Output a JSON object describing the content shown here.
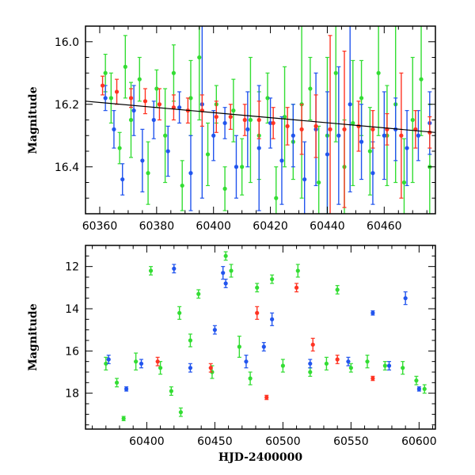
{
  "chart_data": [
    {
      "type": "scatter",
      "panel": "top",
      "xlabel": "",
      "ylabel": "Magnitude",
      "xlim": [
        60355,
        60478
      ],
      "ylim": [
        16.55,
        15.95
      ],
      "y_inverted": true,
      "xticks": [
        60360,
        60380,
        60400,
        60420,
        60440,
        60460
      ],
      "yticks": [
        16.0,
        16.2,
        16.4
      ],
      "trend": {
        "x": [
          60355,
          60478
        ],
        "y": [
          16.19,
          16.29
        ]
      },
      "series": [
        {
          "color": "#33dd33",
          "points": [
            {
              "x": 60362,
              "y": 16.1,
              "e": 0.06
            },
            {
              "x": 60364,
              "y": 16.18,
              "e": 0.08
            },
            {
              "x": 60367,
              "y": 16.34,
              "e": 0.05
            },
            {
              "x": 60369,
              "y": 16.08,
              "e": 0.1
            },
            {
              "x": 60371,
              "y": 16.25,
              "e": 0.12
            },
            {
              "x": 60374,
              "y": 16.12,
              "e": 0.07
            },
            {
              "x": 60377,
              "y": 16.42,
              "e": 0.1
            },
            {
              "x": 60380,
              "y": 16.15,
              "e": 0.06
            },
            {
              "x": 60383,
              "y": 16.3,
              "e": 0.15
            },
            {
              "x": 60386,
              "y": 16.1,
              "e": 0.09
            },
            {
              "x": 60389,
              "y": 16.46,
              "e": 0.08
            },
            {
              "x": 60392,
              "y": 16.18,
              "e": 0.12
            },
            {
              "x": 60395,
              "y": 16.05,
              "e": 0.2
            },
            {
              "x": 60398,
              "y": 16.36,
              "e": 0.1
            },
            {
              "x": 60401,
              "y": 16.2,
              "e": 0.06
            },
            {
              "x": 60404,
              "y": 16.47,
              "e": 0.07
            },
            {
              "x": 60407,
              "y": 16.22,
              "e": 0.1
            },
            {
              "x": 60410,
              "y": 16.4,
              "e": 0.09
            },
            {
              "x": 60413,
              "y": 16.25,
              "e": 0.2
            },
            {
              "x": 60416,
              "y": 16.3,
              "e": 0.14
            },
            {
              "x": 60419,
              "y": 16.18,
              "e": 0.08
            },
            {
              "x": 60422,
              "y": 16.5,
              "e": 0.1
            },
            {
              "x": 60425,
              "y": 16.24,
              "e": 0.16
            },
            {
              "x": 60428,
              "y": 16.32,
              "e": 0.12
            },
            {
              "x": 60431,
              "y": 16.2,
              "e": 0.3
            },
            {
              "x": 60434,
              "y": 16.15,
              "e": 0.1
            },
            {
              "x": 60437,
              "y": 16.45,
              "e": 0.18
            },
            {
              "x": 60440,
              "y": 16.3,
              "e": 0.25
            },
            {
              "x": 60443,
              "y": 16.1,
              "e": 0.22
            },
            {
              "x": 60446,
              "y": 16.4,
              "e": 0.15
            },
            {
              "x": 60449,
              "y": 16.26,
              "e": 0.2
            },
            {
              "x": 60452,
              "y": 16.18,
              "e": 0.12
            },
            {
              "x": 60455,
              "y": 16.35,
              "e": 0.14
            },
            {
              "x": 60458,
              "y": 16.1,
              "e": 0.2
            },
            {
              "x": 60461,
              "y": 16.3,
              "e": 0.16
            },
            {
              "x": 60464,
              "y": 16.2,
              "e": 0.25
            },
            {
              "x": 60467,
              "y": 16.45,
              "e": 0.14
            },
            {
              "x": 60470,
              "y": 16.25,
              "e": 0.2
            },
            {
              "x": 60473,
              "y": 16.12,
              "e": 0.18
            },
            {
              "x": 60476,
              "y": 16.4,
              "e": 0.2
            }
          ]
        },
        {
          "color": "#2255ee",
          "points": [
            {
              "x": 60362,
              "y": 16.18,
              "e": 0.04
            },
            {
              "x": 60365,
              "y": 16.28,
              "e": 0.06
            },
            {
              "x": 60368,
              "y": 16.44,
              "e": 0.05
            },
            {
              "x": 60372,
              "y": 16.22,
              "e": 0.08
            },
            {
              "x": 60375,
              "y": 16.38,
              "e": 0.1
            },
            {
              "x": 60379,
              "y": 16.25,
              "e": 0.06
            },
            {
              "x": 60384,
              "y": 16.35,
              "e": 0.08
            },
            {
              "x": 60388,
              "y": 16.21,
              "e": 0.05
            },
            {
              "x": 60392,
              "y": 16.42,
              "e": 0.12
            },
            {
              "x": 60396,
              "y": 16.2,
              "e": 0.3
            },
            {
              "x": 60400,
              "y": 16.3,
              "e": 0.08
            },
            {
              "x": 60404,
              "y": 16.26,
              "e": 0.05
            },
            {
              "x": 60408,
              "y": 16.4,
              "e": 0.1
            },
            {
              "x": 60412,
              "y": 16.28,
              "e": 0.12
            },
            {
              "x": 60416,
              "y": 16.34,
              "e": 0.2
            },
            {
              "x": 60420,
              "y": 16.26,
              "e": 0.08
            },
            {
              "x": 60424,
              "y": 16.38,
              "e": 0.14
            },
            {
              "x": 60428,
              "y": 16.3,
              "e": 0.1
            },
            {
              "x": 60432,
              "y": 16.44,
              "e": 0.12
            },
            {
              "x": 60436,
              "y": 16.28,
              "e": 0.18
            },
            {
              "x": 60440,
              "y": 16.36,
              "e": 0.2
            },
            {
              "x": 60444,
              "y": 16.3,
              "e": 0.22
            },
            {
              "x": 60448,
              "y": 16.2,
              "e": 0.28
            },
            {
              "x": 60452,
              "y": 16.32,
              "e": 0.12
            },
            {
              "x": 60456,
              "y": 16.42,
              "e": 0.1
            },
            {
              "x": 60460,
              "y": 16.3,
              "e": 0.14
            },
            {
              "x": 60464,
              "y": 16.28,
              "e": 0.1
            },
            {
              "x": 60468,
              "y": 16.34,
              "e": 0.12
            },
            {
              "x": 60472,
              "y": 16.3,
              "e": 0.08
            },
            {
              "x": 60476,
              "y": 16.26,
              "e": 0.1
            }
          ]
        },
        {
          "color": "#ff3322",
          "points": [
            {
              "x": 60361,
              "y": 16.14,
              "e": 0.03
            },
            {
              "x": 60366,
              "y": 16.16,
              "e": 0.04
            },
            {
              "x": 60371,
              "y": 16.18,
              "e": 0.03
            },
            {
              "x": 60376,
              "y": 16.19,
              "e": 0.04
            },
            {
              "x": 60381,
              "y": 16.2,
              "e": 0.05
            },
            {
              "x": 60386,
              "y": 16.21,
              "e": 0.04
            },
            {
              "x": 60391,
              "y": 16.22,
              "e": 0.04
            },
            {
              "x": 60396,
              "y": 16.22,
              "e": 0.05
            },
            {
              "x": 60401,
              "y": 16.24,
              "e": 0.05
            },
            {
              "x": 60406,
              "y": 16.24,
              "e": 0.04
            },
            {
              "x": 60411,
              "y": 16.25,
              "e": 0.05
            },
            {
              "x": 60416,
              "y": 16.25,
              "e": 0.06
            },
            {
              "x": 60421,
              "y": 16.26,
              "e": 0.05
            },
            {
              "x": 60426,
              "y": 16.27,
              "e": 0.06
            },
            {
              "x": 60431,
              "y": 16.28,
              "e": 0.08
            },
            {
              "x": 60436,
              "y": 16.27,
              "e": 0.1
            },
            {
              "x": 60441,
              "y": 16.28,
              "e": 0.3
            },
            {
              "x": 60446,
              "y": 16.28,
              "e": 0.25
            },
            {
              "x": 60451,
              "y": 16.27,
              "e": 0.08
            },
            {
              "x": 60456,
              "y": 16.28,
              "e": 0.06
            },
            {
              "x": 60461,
              "y": 16.28,
              "e": 0.05
            },
            {
              "x": 60466,
              "y": 16.3,
              "e": 0.2
            },
            {
              "x": 60471,
              "y": 16.28,
              "e": 0.06
            },
            {
              "x": 60476,
              "y": 16.29,
              "e": 0.05
            }
          ]
        }
      ]
    },
    {
      "type": "scatter",
      "panel": "bottom",
      "xlabel": "HJD-2400000",
      "ylabel": "Magnitude",
      "xlim": [
        60355,
        60612
      ],
      "ylim": [
        19.7,
        11.0
      ],
      "y_inverted": true,
      "xticks": [
        60400,
        60450,
        60500,
        60550,
        60600
      ],
      "yticks": [
        12,
        14,
        16,
        18
      ],
      "series": [
        {
          "color": "#33dd33",
          "points": [
            {
              "x": 60370,
              "y": 16.6,
              "e": 0.3
            },
            {
              "x": 60378,
              "y": 17.5,
              "e": 0.2
            },
            {
              "x": 60383,
              "y": 19.2,
              "e": 0.1
            },
            {
              "x": 60392,
              "y": 16.5,
              "e": 0.4
            },
            {
              "x": 60403,
              "y": 12.2,
              "e": 0.2
            },
            {
              "x": 60410,
              "y": 16.8,
              "e": 0.3
            },
            {
              "x": 60418,
              "y": 17.9,
              "e": 0.2
            },
            {
              "x": 60424,
              "y": 14.2,
              "e": 0.3
            },
            {
              "x": 60425,
              "y": 18.9,
              "e": 0.2
            },
            {
              "x": 60432,
              "y": 15.5,
              "e": 0.3
            },
            {
              "x": 60438,
              "y": 13.3,
              "e": 0.2
            },
            {
              "x": 60448,
              "y": 17.0,
              "e": 0.3
            },
            {
              "x": 60458,
              "y": 11.5,
              "e": 0.2
            },
            {
              "x": 60462,
              "y": 12.2,
              "e": 0.3
            },
            {
              "x": 60468,
              "y": 15.8,
              "e": 0.5
            },
            {
              "x": 60476,
              "y": 17.3,
              "e": 0.3
            },
            {
              "x": 60481,
              "y": 13.0,
              "e": 0.2
            },
            {
              "x": 60492,
              "y": 12.6,
              "e": 0.2
            },
            {
              "x": 60500,
              "y": 16.7,
              "e": 0.3
            },
            {
              "x": 60511,
              "y": 12.2,
              "e": 0.3
            },
            {
              "x": 60520,
              "y": 17.0,
              "e": 0.2
            },
            {
              "x": 60532,
              "y": 16.6,
              "e": 0.3
            },
            {
              "x": 60540,
              "y": 13.1,
              "e": 0.2
            },
            {
              "x": 60550,
              "y": 16.8,
              "e": 0.2
            },
            {
              "x": 60562,
              "y": 16.5,
              "e": 0.3
            },
            {
              "x": 60575,
              "y": 16.7,
              "e": 0.2
            },
            {
              "x": 60588,
              "y": 16.8,
              "e": 0.3
            },
            {
              "x": 60598,
              "y": 17.4,
              "e": 0.2
            },
            {
              "x": 60604,
              "y": 17.8,
              "e": 0.2
            }
          ]
        },
        {
          "color": "#2255ee",
          "points": [
            {
              "x": 60372,
              "y": 16.4,
              "e": 0.2
            },
            {
              "x": 60385,
              "y": 17.8,
              "e": 0.1
            },
            {
              "x": 60396,
              "y": 16.6,
              "e": 0.2
            },
            {
              "x": 60420,
              "y": 12.1,
              "e": 0.2
            },
            {
              "x": 60432,
              "y": 16.8,
              "e": 0.2
            },
            {
              "x": 60450,
              "y": 15.0,
              "e": 0.2
            },
            {
              "x": 60456,
              "y": 12.3,
              "e": 0.3
            },
            {
              "x": 60458,
              "y": 12.8,
              "e": 0.2
            },
            {
              "x": 60473,
              "y": 16.5,
              "e": 0.3
            },
            {
              "x": 60486,
              "y": 15.8,
              "e": 0.2
            },
            {
              "x": 60492,
              "y": 14.5,
              "e": 0.3
            },
            {
              "x": 60520,
              "y": 16.6,
              "e": 0.2
            },
            {
              "x": 60548,
              "y": 16.5,
              "e": 0.2
            },
            {
              "x": 60566,
              "y": 14.2,
              "e": 0.1
            },
            {
              "x": 60578,
              "y": 16.7,
              "e": 0.2
            },
            {
              "x": 60590,
              "y": 13.5,
              "e": 0.3
            },
            {
              "x": 60600,
              "y": 17.8,
              "e": 0.1
            }
          ]
        },
        {
          "color": "#ff3322",
          "points": [
            {
              "x": 60408,
              "y": 16.5,
              "e": 0.2
            },
            {
              "x": 60447,
              "y": 16.8,
              "e": 0.2
            },
            {
              "x": 60481,
              "y": 14.2,
              "e": 0.3
            },
            {
              "x": 60488,
              "y": 18.2,
              "e": 0.1
            },
            {
              "x": 60510,
              "y": 13.0,
              "e": 0.2
            },
            {
              "x": 60522,
              "y": 15.7,
              "e": 0.3
            },
            {
              "x": 60540,
              "y": 16.4,
              "e": 0.2
            },
            {
              "x": 60566,
              "y": 17.3,
              "e": 0.1
            }
          ]
        }
      ]
    }
  ]
}
